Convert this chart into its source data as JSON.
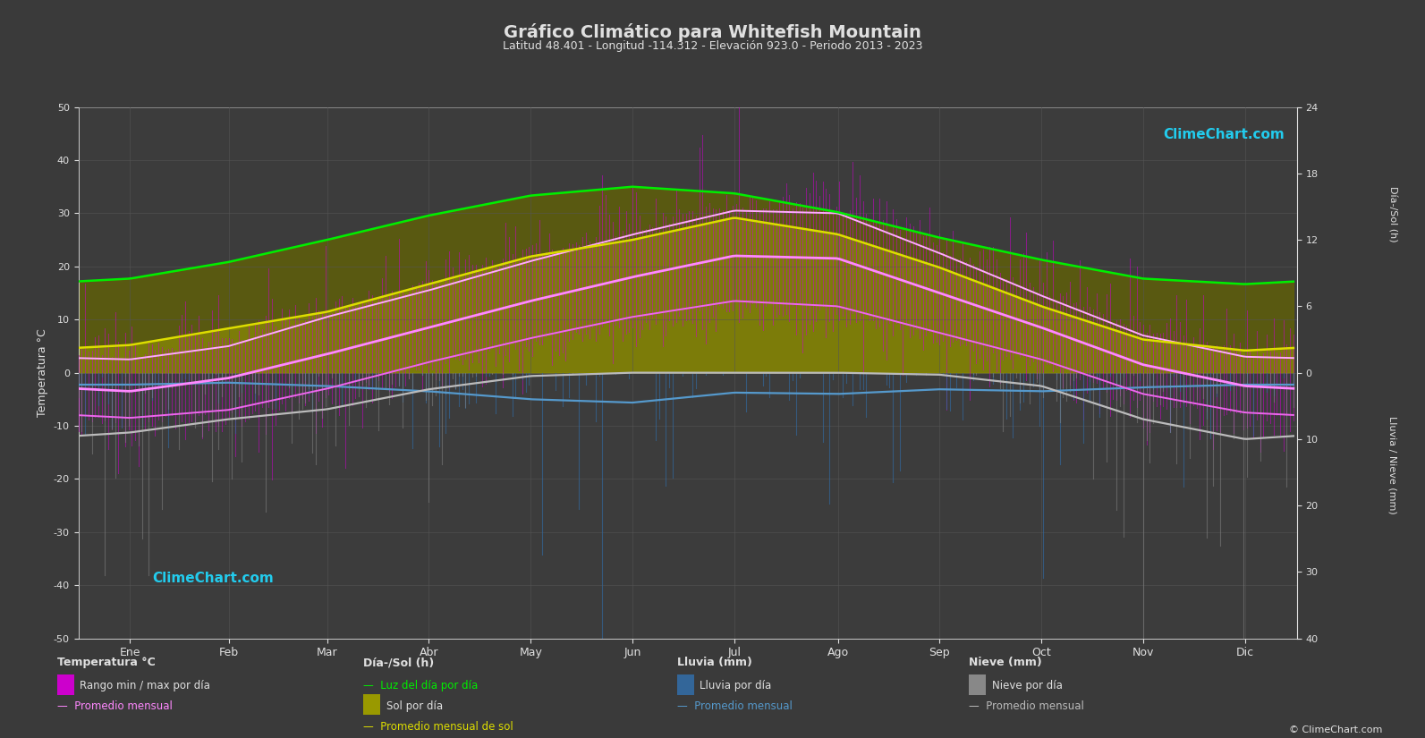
{
  "title": "Gráfico Climático para Whitefish Mountain",
  "subtitle": "Latitud 48.401 - Longitud -114.312 - Elevación 923.0 - Periodo 2013 - 2023",
  "background_color": "#3a3a3a",
  "plot_bg_color": "#3c3c3c",
  "text_color": "#e0e0e0",
  "months": [
    "Ene",
    "Feb",
    "Mar",
    "Abr",
    "May",
    "Jun",
    "Jul",
    "Ago",
    "Sep",
    "Oct",
    "Nov",
    "Dic"
  ],
  "days_per_month": [
    31,
    28,
    31,
    30,
    31,
    30,
    31,
    31,
    30,
    31,
    30,
    31
  ],
  "temp_ylim": [
    -50,
    50
  ],
  "temp_yticks": [
    -50,
    -40,
    -30,
    -20,
    -10,
    0,
    10,
    20,
    30,
    40,
    50
  ],
  "right_yticks_top": [
    0,
    6,
    12,
    18,
    24
  ],
  "right_yticks_bottom": [
    0,
    10,
    20,
    30,
    40
  ],
  "temp_avg": [
    -3.5,
    -1.0,
    3.5,
    8.5,
    13.5,
    18.0,
    22.0,
    21.5,
    15.0,
    8.5,
    1.5,
    -2.5
  ],
  "temp_min_avg": [
    -8.5,
    -7.0,
    -3.0,
    2.0,
    6.5,
    10.5,
    13.5,
    12.5,
    7.5,
    2.5,
    -4.0,
    -7.5
  ],
  "temp_max_avg": [
    2.5,
    5.0,
    10.5,
    15.5,
    21.0,
    26.0,
    30.5,
    30.0,
    22.5,
    14.5,
    7.0,
    3.0
  ],
  "daylight_avg": [
    8.5,
    10.0,
    12.0,
    14.2,
    16.0,
    16.8,
    16.2,
    14.5,
    12.2,
    10.2,
    8.5,
    8.0
  ],
  "sunshine_avg": [
    2.5,
    4.0,
    5.5,
    8.0,
    10.5,
    12.0,
    14.0,
    12.5,
    9.5,
    6.0,
    3.0,
    2.0
  ],
  "rain_avg_mm": [
    1.8,
    1.5,
    2.0,
    2.8,
    4.0,
    4.5,
    3.0,
    3.2,
    2.5,
    2.8,
    2.2,
    1.8
  ],
  "snow_avg_mm": [
    9.0,
    7.0,
    5.5,
    2.5,
    0.5,
    0.0,
    0.0,
    0.0,
    0.3,
    2.0,
    7.0,
    10.0
  ],
  "colors": {
    "temp_line_avg": "#ff88ff",
    "temp_line_min": "#ee66ee",
    "temp_line_max": "#ffaaff",
    "temp_fill_magenta": "#cc00cc",
    "daylight_line": "#00ee00",
    "sunshine_line": "#dddd00",
    "sunshine_fill_dark": "#888800",
    "sunshine_fill_light": "#aaaa22",
    "rain_bar": "#336699",
    "rain_line": "#5599cc",
    "snow_bar": "#888888",
    "snow_line": "#bbbbbb",
    "grid": "#555555"
  },
  "sun_scale": 2.0833,
  "rain_scale": 1.25,
  "figsize": [
    15.93,
    8.25
  ],
  "dpi": 100
}
